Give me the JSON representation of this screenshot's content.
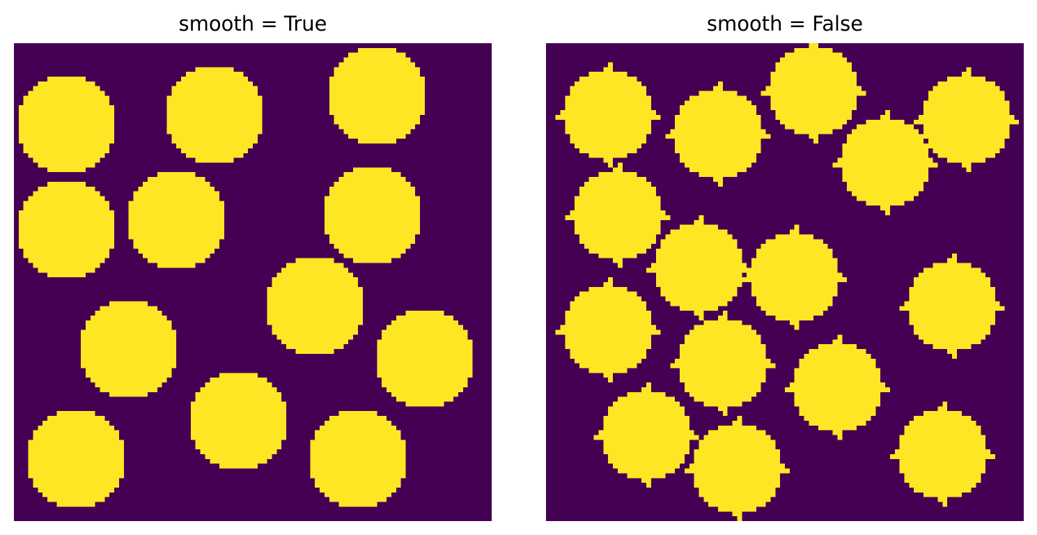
{
  "chart_data": [
    {
      "type": "heatmap",
      "title": "smooth = True",
      "grid_size": 100,
      "colors": {
        "background": "#440154",
        "foreground": "#fde725"
      },
      "smooth": true,
      "radius": 10.5,
      "circle_centers": [
        [
          11,
          17
        ],
        [
          42,
          15
        ],
        [
          76,
          11
        ],
        [
          11,
          39
        ],
        [
          34,
          37
        ],
        [
          75,
          36
        ],
        [
          63,
          55
        ],
        [
          24,
          64
        ],
        [
          86,
          66
        ],
        [
          47,
          79
        ],
        [
          13,
          87
        ],
        [
          72,
          87
        ]
      ]
    },
    {
      "type": "heatmap",
      "title": "smooth = False",
      "grid_size": 100,
      "colors": {
        "background": "#440154",
        "foreground": "#fde725"
      },
      "smooth": false,
      "radius": 9.6,
      "circle_centers": [
        [
          13,
          15
        ],
        [
          36,
          19
        ],
        [
          56,
          10
        ],
        [
          88,
          16
        ],
        [
          71,
          25
        ],
        [
          15,
          36
        ],
        [
          32,
          47
        ],
        [
          52,
          49
        ],
        [
          85,
          55
        ],
        [
          13,
          60
        ],
        [
          37,
          67
        ],
        [
          61,
          72
        ],
        [
          21,
          82
        ],
        [
          40,
          89
        ],
        [
          83,
          86
        ]
      ]
    }
  ]
}
